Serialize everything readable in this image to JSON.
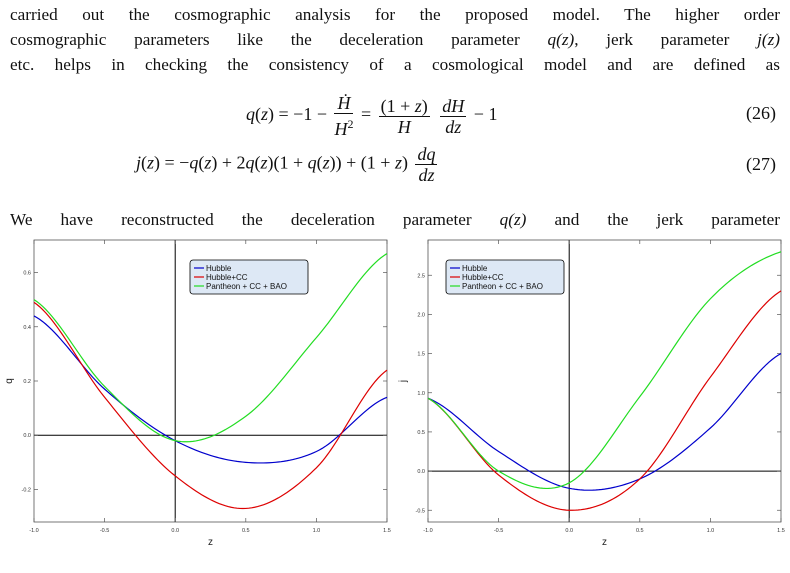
{
  "text": {
    "para1_l1": "carried out the cosmographic analysis for the proposed model. The higher order",
    "para1_l2a": "cosmographic parameters like the deceleration parameter ",
    "para1_l2b": ", jerk parameter ",
    "para1_l3": "etc. helps in checking the consistency of a cosmological model and are defined as",
    "para2_l1a": "We have reconstructed the deceleration parameter ",
    "para2_l1b": " and the jerk parameter",
    "sym_qz": "q(z)",
    "sym_jz": "j(z)"
  },
  "equations": [
    {
      "number": "(26)"
    },
    {
      "number": "(27)"
    }
  ],
  "chart_data": [
    {
      "type": "line",
      "xlabel": "z",
      "ylabel": "q",
      "xlim": [
        -1.0,
        1.5
      ],
      "ylim": [
        -0.32,
        0.72
      ],
      "x_ticks": [
        "-1.0",
        "-0.5",
        "0.0",
        "0.5",
        "1.0",
        "1.5"
      ],
      "y_ticks": [
        "-0.2",
        "0.0",
        "0.2",
        "0.4",
        "0.6"
      ],
      "legend": "top-right",
      "series": [
        {
          "name": "Hubble",
          "color": "#0000cc",
          "x": [
            -1.0,
            -0.5,
            0.0,
            0.5,
            1.0,
            1.5
          ],
          "y": [
            0.44,
            0.17,
            -0.02,
            -0.1,
            -0.06,
            0.14
          ]
        },
        {
          "name": "Hubble+CC",
          "color": "#dd0000",
          "x": [
            -1.0,
            -0.5,
            0.0,
            0.5,
            1.0,
            1.5
          ],
          "y": [
            0.49,
            0.14,
            -0.15,
            -0.27,
            -0.12,
            0.24
          ]
        },
        {
          "name": "Pantheon + CC + BAO",
          "color": "#22dd22",
          "x": [
            -1.0,
            -0.5,
            0.0,
            0.5,
            1.0,
            1.5
          ],
          "y": [
            0.5,
            0.18,
            -0.02,
            0.07,
            0.36,
            0.67
          ]
        }
      ]
    },
    {
      "type": "line",
      "xlabel": "z",
      "ylabel": "j",
      "xlim": [
        -1.0,
        1.5
      ],
      "ylim": [
        -0.65,
        2.95
      ],
      "x_ticks": [
        "-1.0",
        "-0.5",
        "0.0",
        "0.5",
        "1.0",
        "1.5"
      ],
      "y_ticks": [
        "-0.5",
        "0.0",
        "0.5",
        "1.0",
        "1.5",
        "2.0",
        "2.5"
      ],
      "legend": "top-right",
      "series": [
        {
          "name": "Hubble",
          "color": "#0000cc",
          "x": [
            -1.0,
            -0.5,
            0.0,
            0.5,
            1.0,
            1.5
          ],
          "y": [
            0.93,
            0.25,
            -0.22,
            -0.1,
            0.55,
            1.5
          ]
        },
        {
          "name": "Hubble+CC",
          "color": "#dd0000",
          "x": [
            -1.0,
            -0.5,
            0.0,
            0.5,
            1.0,
            1.5
          ],
          "y": [
            0.93,
            -0.05,
            -0.5,
            -0.1,
            1.2,
            2.3
          ]
        },
        {
          "name": "Pantheon + CC + BAO",
          "color": "#22dd22",
          "x": [
            -1.0,
            -0.5,
            0.0,
            0.5,
            1.0,
            1.5
          ],
          "y": [
            0.93,
            0.0,
            -0.15,
            0.95,
            2.2,
            2.8
          ]
        }
      ]
    }
  ]
}
